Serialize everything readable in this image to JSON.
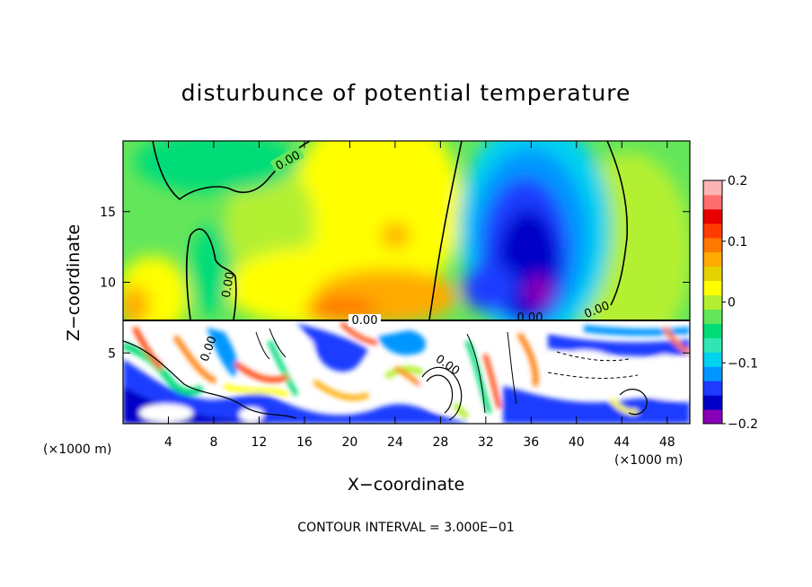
{
  "chart_data": {
    "type": "heatmap",
    "title": "disturbunce of potential temperature",
    "xlabel": "X−coordinate",
    "ylabel": "Z−coordinate",
    "x_unit": "(×1000 m)",
    "x_unit_right": "(×1000 m)",
    "xlim": [
      0,
      50
    ],
    "ylim": [
      0,
      20
    ],
    "x_ticks": [
      4,
      8,
      12,
      16,
      20,
      24,
      28,
      32,
      36,
      40,
      44,
      48
    ],
    "y_ticks": [
      5,
      10,
      15
    ],
    "x_tick_labels": [
      "4",
      "8",
      "12",
      "16",
      "20",
      "24",
      "28",
      "32",
      "36",
      "40",
      "44",
      "48"
    ],
    "y_tick_labels": [
      "5",
      "10",
      "15"
    ],
    "colorbar": {
      "min": -0.2,
      "max": 0.2,
      "ticks": [
        0.2,
        0.1,
        0,
        -0.1,
        -0.2
      ],
      "tick_labels": [
        "0.2",
        "0.1",
        "0",
        "−0.1",
        "−0.2"
      ],
      "colors": [
        "#8a00b8",
        "#0000c8",
        "#1e3cff",
        "#0096ff",
        "#00d2f0",
        "#32e6b4",
        "#00dc78",
        "#64e65a",
        "#b4f032",
        "#ffff00",
        "#e6d200",
        "#ffaa00",
        "#ff7800",
        "#ff3c00",
        "#e60000",
        "#ff6e6e",
        "#ffb4b4"
      ]
    },
    "contour_interval_text": "CONTOUR INTERVAL = 3.000E−01",
    "contour_labels": [
      "0.00",
      "0.00",
      "0.00",
      "0.00",
      "0.00",
      "0.00",
      "0.00"
    ],
    "grid": false
  }
}
